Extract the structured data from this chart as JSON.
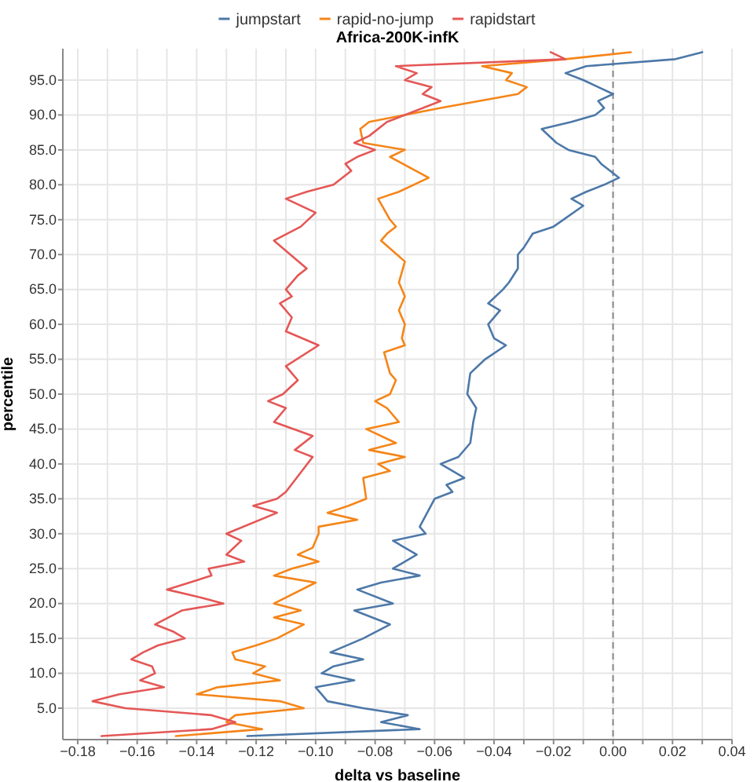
{
  "chart_data": {
    "type": "line",
    "title": "Africa-200K-infK",
    "xlabel": "delta vs baseline",
    "ylabel": "percentile",
    "xlim": [
      -0.185,
      0.04
    ],
    "xticks": [
      {
        "value": -0.18,
        "label": "−0.18"
      },
      {
        "value": -0.17,
        "label": null
      },
      {
        "value": -0.16,
        "label": "−0.16"
      },
      {
        "value": -0.15,
        "label": null
      },
      {
        "value": -0.14,
        "label": "−0.14"
      },
      {
        "value": -0.13,
        "label": null
      },
      {
        "value": -0.12,
        "label": "−0.12"
      },
      {
        "value": -0.11,
        "label": null
      },
      {
        "value": -0.1,
        "label": "−0.10"
      },
      {
        "value": -0.09,
        "label": null
      },
      {
        "value": -0.08,
        "label": "−0.08"
      },
      {
        "value": -0.07,
        "label": null
      },
      {
        "value": -0.06,
        "label": "−0.06"
      },
      {
        "value": -0.05,
        "label": null
      },
      {
        "value": -0.04,
        "label": "−0.04"
      },
      {
        "value": -0.03,
        "label": null
      },
      {
        "value": -0.02,
        "label": "−0.02"
      },
      {
        "value": -0.01,
        "label": null
      },
      {
        "value": 0,
        "label": "0.00"
      },
      {
        "value": 0.01,
        "label": null
      },
      {
        "value": 0.02,
        "label": "0.02"
      },
      {
        "value": 0.03,
        "label": null
      },
      {
        "value": 0.04,
        "label": "0.04"
      }
    ],
    "ylim": [
      0.5,
      99.5
    ],
    "yticks": [
      {
        "value": 5,
        "label": "5.0"
      },
      {
        "value": 10,
        "label": "10.0"
      },
      {
        "value": 15,
        "label": "15.0"
      },
      {
        "value": 20,
        "label": "20.0"
      },
      {
        "value": 25,
        "label": "25.0"
      },
      {
        "value": 30,
        "label": "30.0"
      },
      {
        "value": 35,
        "label": "35.0"
      },
      {
        "value": 40,
        "label": "40.0"
      },
      {
        "value": 45,
        "label": "45.0"
      },
      {
        "value": 50,
        "label": "50.0"
      },
      {
        "value": 55,
        "label": "55.0"
      },
      {
        "value": 60,
        "label": "60.0"
      },
      {
        "value": 65,
        "label": "65.0"
      },
      {
        "value": 70,
        "label": "70.0"
      },
      {
        "value": 75,
        "label": "75.0"
      },
      {
        "value": 80,
        "label": "80.0"
      },
      {
        "value": 85,
        "label": "85.0"
      },
      {
        "value": 90,
        "label": "90.0"
      },
      {
        "value": 95,
        "label": "95.0"
      }
    ],
    "grid": true,
    "legend": "top",
    "ref_lines": [
      {
        "axis": "x",
        "value": 0,
        "color": "#888888",
        "line_style": "dashed"
      }
    ],
    "series": [
      {
        "name": "jumpstart",
        "color": "#4c78a8",
        "x": [
          0.03,
          0.021,
          -0.009,
          -0.016,
          -0.01,
          -0.005,
          0.0,
          -0.005,
          -0.003,
          -0.006,
          -0.014,
          -0.024,
          -0.019,
          -0.015,
          -0.006,
          -0.004,
          -0.001,
          0.002,
          -0.003,
          -0.009,
          -0.014,
          -0.01,
          -0.02,
          -0.027,
          -0.03,
          -0.032,
          -0.032,
          -0.035,
          -0.037,
          -0.042,
          -0.038,
          -0.042,
          -0.04,
          -0.036,
          -0.043,
          -0.048,
          -0.049,
          -0.046,
          -0.047,
          -0.048,
          -0.052,
          -0.058,
          -0.05,
          -0.056,
          -0.054,
          -0.06,
          -0.065,
          -0.063,
          -0.074,
          -0.066,
          -0.074,
          -0.065,
          -0.078,
          -0.086,
          -0.074,
          -0.087,
          -0.075,
          -0.084,
          -0.095,
          -0.084,
          -0.094,
          -0.098,
          -0.087,
          -0.1,
          -0.096,
          -0.084,
          -0.069,
          -0.078,
          -0.065,
          -0.123
        ],
        "values": [
          99,
          98,
          97,
          96,
          95,
          94,
          93,
          92,
          91,
          90,
          89,
          88,
          86,
          85,
          84,
          83,
          82,
          81,
          80,
          79,
          78,
          77,
          74,
          73,
          71,
          70,
          68,
          66,
          65,
          63,
          62,
          60,
          58,
          57,
          55,
          53,
          50,
          48,
          46,
          43,
          41,
          40,
          38,
          37,
          36,
          35,
          31,
          30,
          29,
          27,
          25,
          24,
          23,
          22,
          20,
          19,
          17,
          15,
          13,
          12,
          11,
          10,
          9,
          8,
          6,
          5,
          4,
          3,
          2,
          1
        ]
      },
      {
        "name": "rapid-no-jump",
        "color": "#f58518",
        "x": [
          0.006,
          -0.016,
          -0.044,
          -0.034,
          -0.036,
          -0.029,
          -0.032,
          -0.058,
          -0.082,
          -0.085,
          -0.084,
          -0.07,
          -0.075,
          -0.062,
          -0.072,
          -0.079,
          -0.075,
          -0.073,
          -0.076,
          -0.078,
          -0.07,
          -0.072,
          -0.07,
          -0.072,
          -0.07,
          -0.071,
          -0.07,
          -0.077,
          -0.075,
          -0.073,
          -0.075,
          -0.08,
          -0.076,
          -0.072,
          -0.083,
          -0.073,
          -0.082,
          -0.07,
          -0.079,
          -0.075,
          -0.084,
          -0.083,
          -0.089,
          -0.096,
          -0.086,
          -0.099,
          -0.099,
          -0.101,
          -0.106,
          -0.099,
          -0.108,
          -0.114,
          -0.1,
          -0.114,
          -0.105,
          -0.114,
          -0.104,
          -0.113,
          -0.12,
          -0.128,
          -0.127,
          -0.117,
          -0.121,
          -0.112,
          -0.133,
          -0.14,
          -0.112,
          -0.104,
          -0.127,
          -0.13,
          -0.118,
          -0.147
        ],
        "values": [
          99,
          98,
          97,
          96,
          95,
          94,
          93,
          91,
          89,
          88,
          86,
          85,
          84,
          81,
          79,
          78,
          75,
          74,
          73,
          72,
          69,
          66,
          64,
          62,
          60,
          58,
          57,
          56,
          53,
          52,
          50,
          49,
          48,
          46,
          45,
          43,
          42,
          41,
          40,
          39,
          38,
          35,
          34,
          33,
          32,
          31,
          30,
          28,
          27,
          26,
          25,
          24,
          23,
          20,
          19,
          18,
          17,
          15,
          14,
          13,
          12,
          11,
          10,
          9,
          8,
          7,
          6,
          5,
          4,
          3,
          2,
          1
        ]
      },
      {
        "name": "rapidstart",
        "color": "#e45756",
        "x": [
          -0.021,
          -0.016,
          -0.073,
          -0.066,
          -0.07,
          -0.061,
          -0.064,
          -0.058,
          -0.076,
          -0.082,
          -0.087,
          -0.08,
          -0.086,
          -0.09,
          -0.088,
          -0.094,
          -0.103,
          -0.11,
          -0.1,
          -0.105,
          -0.114,
          -0.103,
          -0.106,
          -0.11,
          -0.108,
          -0.112,
          -0.108,
          -0.11,
          -0.099,
          -0.11,
          -0.108,
          -0.106,
          -0.111,
          -0.116,
          -0.11,
          -0.114,
          -0.101,
          -0.107,
          -0.101,
          -0.11,
          -0.113,
          -0.121,
          -0.113,
          -0.13,
          -0.125,
          -0.13,
          -0.124,
          -0.136,
          -0.135,
          -0.15,
          -0.14,
          -0.131,
          -0.145,
          -0.154,
          -0.148,
          -0.144,
          -0.153,
          -0.158,
          -0.162,
          -0.155,
          -0.154,
          -0.159,
          -0.151,
          -0.166,
          -0.175,
          -0.164,
          -0.135,
          -0.127,
          -0.135,
          -0.172
        ],
        "values": [
          99,
          98,
          97,
          96,
          95,
          94,
          93,
          92,
          89,
          87,
          86,
          85,
          84,
          83,
          82,
          80,
          79,
          78,
          76,
          74,
          72,
          68,
          67,
          65,
          64,
          63,
          61,
          59,
          57,
          54,
          53,
          52,
          50,
          49,
          48,
          46,
          44,
          42,
          41,
          36,
          35,
          34,
          33,
          30,
          29,
          27,
          26,
          25,
          24,
          22,
          21,
          20,
          19,
          17,
          16,
          15,
          14,
          13,
          12,
          11,
          10,
          9,
          8,
          7,
          6,
          5,
          4,
          3,
          2,
          1
        ]
      }
    ]
  }
}
